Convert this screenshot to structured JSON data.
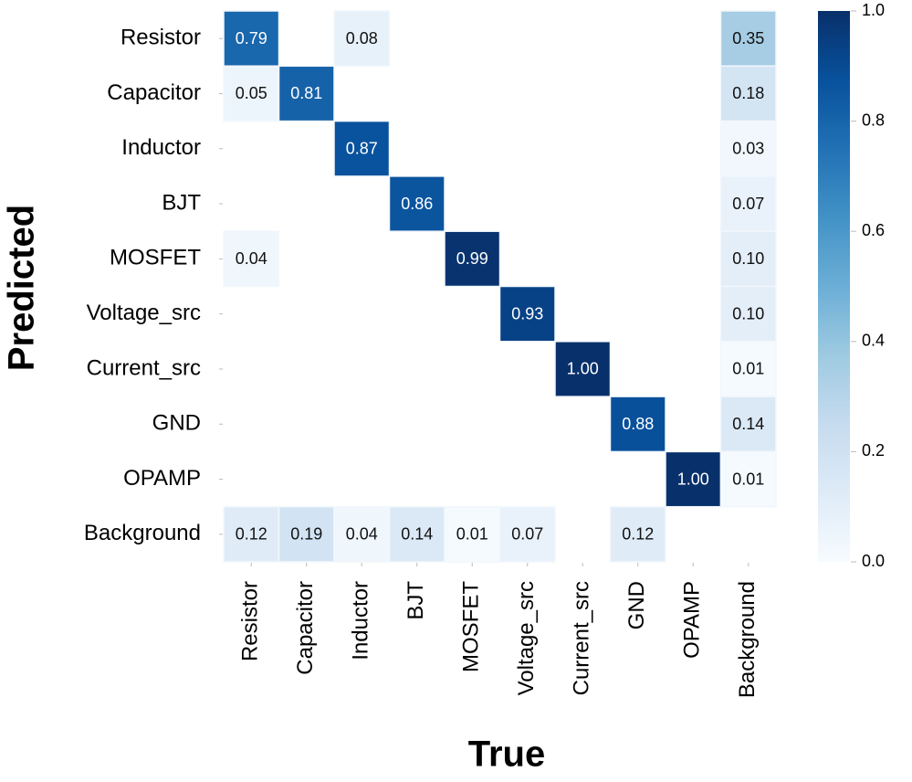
{
  "chart_data": {
    "type": "heatmap",
    "xlabel": "True",
    "ylabel": "Predicted",
    "x_categories": [
      "Resistor",
      "Capacitor",
      "Inductor",
      "BJT",
      "MOSFET",
      "Voltage_src",
      "Current_src",
      "GND",
      "OPAMP",
      "Background"
    ],
    "y_categories": [
      "Resistor",
      "Capacitor",
      "Inductor",
      "BJT",
      "MOSFET",
      "Voltage_src",
      "Current_src",
      "GND",
      "OPAMP",
      "Background"
    ],
    "values": [
      [
        0.79,
        null,
        0.08,
        null,
        null,
        null,
        null,
        null,
        null,
        0.35
      ],
      [
        0.05,
        0.81,
        null,
        null,
        null,
        null,
        null,
        null,
        null,
        0.18
      ],
      [
        null,
        null,
        0.87,
        null,
        null,
        null,
        null,
        null,
        null,
        0.03
      ],
      [
        null,
        null,
        null,
        0.86,
        null,
        null,
        null,
        null,
        null,
        0.07
      ],
      [
        0.04,
        null,
        null,
        null,
        0.99,
        null,
        null,
        null,
        null,
        0.1
      ],
      [
        null,
        null,
        null,
        null,
        null,
        0.93,
        null,
        null,
        null,
        0.1
      ],
      [
        null,
        null,
        null,
        null,
        null,
        null,
        1,
        null,
        null,
        0.01
      ],
      [
        null,
        null,
        null,
        null,
        null,
        null,
        null,
        0.88,
        null,
        0.14
      ],
      [
        null,
        null,
        null,
        null,
        null,
        null,
        null,
        null,
        1,
        0.01
      ],
      [
        0.12,
        0.19,
        0.04,
        0.14,
        0.01,
        0.07,
        null,
        0.12,
        null,
        null
      ]
    ],
    "value_labels": [
      [
        "0.79",
        null,
        "0.08",
        null,
        null,
        null,
        null,
        null,
        null,
        "0.35"
      ],
      [
        "0.05",
        "0.81",
        null,
        null,
        null,
        null,
        null,
        null,
        null,
        "0.18"
      ],
      [
        null,
        null,
        "0.87",
        null,
        null,
        null,
        null,
        null,
        null,
        "0.03"
      ],
      [
        null,
        null,
        null,
        "0.86",
        null,
        null,
        null,
        null,
        null,
        "0.07"
      ],
      [
        "0.04",
        null,
        null,
        null,
        "0.99",
        null,
        null,
        null,
        null,
        "0.10"
      ],
      [
        null,
        null,
        null,
        null,
        null,
        "0.93",
        null,
        null,
        null,
        "0.10"
      ],
      [
        null,
        null,
        null,
        null,
        null,
        null,
        "1.00",
        null,
        null,
        "0.01"
      ],
      [
        null,
        null,
        null,
        null,
        null,
        null,
        null,
        "0.88",
        null,
        "0.14"
      ],
      [
        null,
        null,
        null,
        null,
        null,
        null,
        null,
        null,
        "1.00",
        "0.01"
      ],
      [
        "0.12",
        "0.19",
        "0.04",
        "0.14",
        "0.01",
        "0.07",
        null,
        "0.12",
        null,
        null
      ]
    ],
    "colormap": "Blues",
    "colorbar": {
      "lim": [
        0,
        1
      ],
      "ticks": [
        {
          "value": 0,
          "label": "0.0"
        },
        0.2,
        0.4,
        0.6,
        0.8,
        {
          "value": 1,
          "label": "1.0"
        }
      ]
    }
  }
}
